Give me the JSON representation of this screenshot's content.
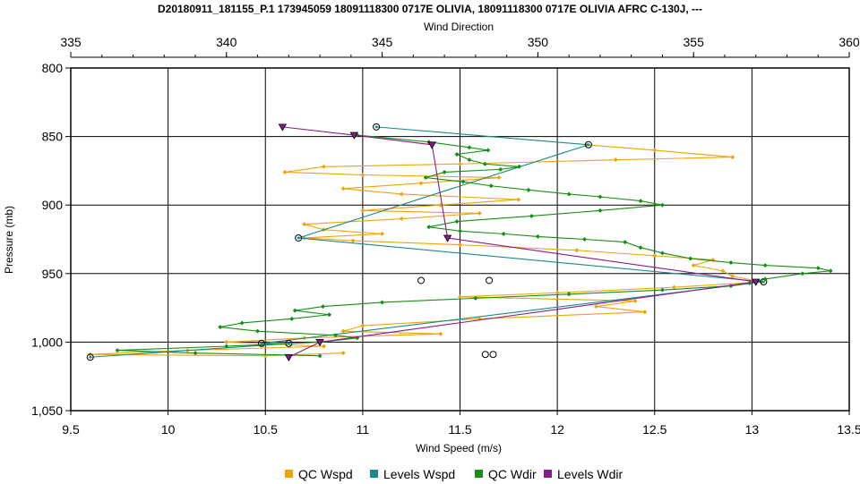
{
  "chart_data": {
    "type": "line",
    "title": "D20180911_181155_P.1 173945059 18091118300 0717E OLIVIA, 18091118300 0717E OLIVIA AFRC C-130J, ---",
    "xlabel": "Wind Speed (m/s)",
    "x2label": "Wind Direction",
    "ylabel": "Pressure (mb)",
    "xlim": [
      9.5,
      13.5
    ],
    "x2lim": [
      335,
      360
    ],
    "ylim": [
      800,
      1050
    ],
    "y_inverted": true,
    "grid": true,
    "legend_position": "bottom",
    "xticks": [
      "9.5",
      "10",
      "10.5",
      "11",
      "11.5",
      "12",
      "12.5",
      "13",
      "13.5"
    ],
    "x2ticks": [
      "335",
      "340",
      "345",
      "350",
      "355",
      "360"
    ],
    "yticks": [
      "800",
      "850",
      "900",
      "950",
      "1,000",
      "1,050"
    ],
    "series": [
      {
        "name": "QC Wspd",
        "axis": "bottom",
        "color": "#f0a30a",
        "marker": "diamond",
        "points": [
          [
            12.15,
            856
          ],
          [
            12.5,
            860
          ],
          [
            12.9,
            865
          ],
          [
            12.3,
            867
          ],
          [
            11.5,
            870
          ],
          [
            10.8,
            872
          ],
          [
            10.6,
            876
          ],
          [
            11.0,
            878
          ],
          [
            11.7,
            880
          ],
          [
            11.3,
            884
          ],
          [
            10.9,
            888
          ],
          [
            11.2,
            892
          ],
          [
            11.8,
            896
          ],
          [
            11.4,
            900
          ],
          [
            11.0,
            904
          ],
          [
            11.6,
            906
          ],
          [
            11.2,
            910
          ],
          [
            10.7,
            914
          ],
          [
            10.8,
            918
          ],
          [
            11.1,
            921
          ],
          [
            10.7,
            924
          ],
          [
            10.95,
            926
          ],
          [
            11.5,
            929
          ],
          [
            12.1,
            933
          ],
          [
            12.5,
            937
          ],
          [
            12.8,
            940
          ],
          [
            12.7,
            944
          ],
          [
            12.85,
            948
          ],
          [
            12.9,
            952
          ],
          [
            13.05,
            956
          ],
          [
            12.6,
            960
          ],
          [
            12.0,
            964
          ],
          [
            11.5,
            967
          ],
          [
            12.4,
            970
          ],
          [
            12.2,
            974
          ],
          [
            12.45,
            978
          ],
          [
            11.6,
            983
          ],
          [
            11.0,
            988
          ],
          [
            10.9,
            992
          ],
          [
            11.4,
            994
          ],
          [
            10.7,
            997
          ],
          [
            10.3,
            1000
          ],
          [
            10.8,
            1003
          ],
          [
            10.1,
            1006
          ],
          [
            9.6,
            1009
          ],
          [
            10.5,
            1010
          ],
          [
            10.9,
            1008
          ]
        ]
      },
      {
        "name": "Levels Wspd",
        "axis": "bottom",
        "color": "#1a8a8a",
        "marker": "circle",
        "points": [
          [
            11.07,
            843
          ],
          [
            12.16,
            856
          ],
          [
            10.67,
            924
          ],
          [
            13.06,
            956
          ],
          [
            10.48,
            1001
          ],
          [
            10.62,
            1001
          ],
          [
            9.6,
            1011
          ]
        ]
      },
      {
        "name": "QC Wdir",
        "axis": "top",
        "color": "#138f13",
        "marker": "diamond",
        "points": [
          [
            344.2,
            849
          ],
          [
            346.5,
            854
          ],
          [
            347.8,
            858
          ],
          [
            348.4,
            860
          ],
          [
            347.4,
            863
          ],
          [
            347.8,
            867
          ],
          [
            348.3,
            870
          ],
          [
            349.4,
            872
          ],
          [
            348.8,
            874
          ],
          [
            347.0,
            876
          ],
          [
            346.4,
            880
          ],
          [
            347.6,
            883
          ],
          [
            348.5,
            886
          ],
          [
            349.7,
            889
          ],
          [
            351.0,
            892
          ],
          [
            352.0,
            894
          ],
          [
            353.3,
            897
          ],
          [
            354.0,
            900
          ],
          [
            352.0,
            904
          ],
          [
            349.8,
            908
          ],
          [
            347.4,
            912
          ],
          [
            346.5,
            916
          ],
          [
            347.5,
            919
          ],
          [
            348.9,
            921
          ],
          [
            350.0,
            923
          ],
          [
            351.5,
            925
          ],
          [
            352.8,
            927
          ],
          [
            353.3,
            931
          ],
          [
            354.0,
            935
          ],
          [
            354.9,
            939
          ],
          [
            356.2,
            942
          ],
          [
            357.3,
            944
          ],
          [
            359.0,
            946
          ],
          [
            359.4,
            948
          ],
          [
            358.5,
            950
          ],
          [
            357.3,
            954
          ],
          [
            356.8,
            957
          ],
          [
            356.2,
            959
          ],
          [
            354.0,
            962
          ],
          [
            351.0,
            965
          ],
          [
            348.0,
            968
          ],
          [
            345.0,
            971
          ],
          [
            343.1,
            974
          ],
          [
            342.2,
            977
          ],
          [
            343.3,
            980
          ],
          [
            342.1,
            983
          ],
          [
            340.5,
            986
          ],
          [
            339.8,
            989
          ],
          [
            341.0,
            992
          ],
          [
            343.5,
            995
          ],
          [
            344.2,
            997
          ],
          [
            343.0,
            1000
          ],
          [
            340.0,
            1003
          ],
          [
            336.5,
            1006
          ],
          [
            339.0,
            1008
          ],
          [
            343.0,
            1010
          ]
        ]
      },
      {
        "name": "Levels Wdir",
        "axis": "top",
        "color": "#8a1a8a",
        "marker": "triangle",
        "points": [
          [
            341.8,
            843
          ],
          [
            344.1,
            849
          ],
          [
            346.6,
            856
          ],
          [
            347.1,
            924
          ],
          [
            357.0,
            956
          ],
          [
            343.0,
            1000
          ],
          [
            342.0,
            1011
          ]
        ]
      }
    ],
    "unassigned_circles": [
      [
        11.3,
        955
      ],
      [
        11.65,
        955
      ],
      [
        11.63,
        1009
      ],
      [
        11.67,
        1009
      ]
    ]
  }
}
